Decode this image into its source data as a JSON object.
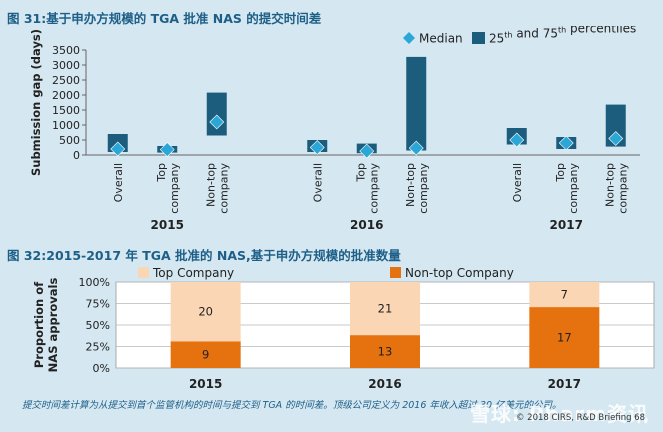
{
  "figure_titles": {
    "fig31": "图 31:基于申办方规模的 TGA 批准 NAS 的提交时间差",
    "fig32": "图 32:2015-2017 年 TGA 批准的 NAS,基于申办方规模的批准数量"
  },
  "footnote": "提交时间差计算为从提交到首个监管机构的时间与提交到 TGA 的时间差。顶级公司定义为 2016 年收入超过 30 亿美元的公司。",
  "copyright": "© 2018 CIRS, R&D Briefing 68",
  "watermark": "雪球: Pharm资讯",
  "colors": {
    "median": "#2aa6d7",
    "iqr_bar": "#1c5d7e",
    "top_company": "#fbd6b4",
    "non_top_company": "#e5720f"
  },
  "chart_data": [
    {
      "type": "bar",
      "subtype": "floating-range-with-median",
      "ylabel": "Submission gap (days)",
      "ylim": [
        0,
        3500
      ],
      "yticks": [
        0,
        500,
        1000,
        1500,
        2000,
        2500,
        3000,
        3500
      ],
      "legend": {
        "position": "top-right",
        "median_label": "Median",
        "bar_label_main": "25",
        "bar_label_sup1": "th",
        "bar_label_mid": " and 75",
        "bar_label_sup2": "th",
        "bar_label_end": " percentiles"
      },
      "groups": [
        {
          "year": "2015",
          "items": [
            {
              "category": "Overall",
              "p25": 100,
              "p75": 700,
              "median": 200
            },
            {
              "category": "Top company",
              "lines": [
                "Top",
                "company"
              ],
              "p25": 80,
              "p75": 300,
              "median": 180
            },
            {
              "category": "Non-top company",
              "lines": [
                "Non-top",
                "company"
              ],
              "p25": 650,
              "p75": 2080,
              "median": 1100
            }
          ]
        },
        {
          "year": "2016",
          "items": [
            {
              "category": "Overall",
              "p25": 100,
              "p75": 500,
              "median": 250
            },
            {
              "category": "Top company",
              "lines": [
                "Top",
                "company"
              ],
              "p25": 60,
              "p75": 380,
              "median": 130
            },
            {
              "category": "Non-top company",
              "lines": [
                "Non-top",
                "company"
              ],
              "p25": 150,
              "p75": 3270,
              "median": 230
            }
          ]
        },
        {
          "year": "2017",
          "items": [
            {
              "category": "Overall",
              "p25": 350,
              "p75": 900,
              "median": 500
            },
            {
              "category": "Top company",
              "lines": [
                "Top",
                "company"
              ],
              "p25": 200,
              "p75": 600,
              "median": 400
            },
            {
              "category": "Non-top company",
              "lines": [
                "Non-top",
                "company"
              ],
              "p25": 280,
              "p75": 1680,
              "median": 550
            }
          ]
        }
      ]
    },
    {
      "type": "bar",
      "subtype": "stacked-percent",
      "ylabel_lines": [
        "Proportion of",
        "NAS approvals"
      ],
      "ylim": [
        0,
        100
      ],
      "yticks": [
        "0%",
        "25%",
        "50%",
        "75%",
        "100%"
      ],
      "categories": [
        "2015",
        "2016",
        "2017"
      ],
      "series": [
        {
          "name": "Non-top Company",
          "values": [
            9,
            13,
            17
          ]
        },
        {
          "name": "Top Company",
          "values": [
            20,
            21,
            7
          ]
        }
      ],
      "legend_position": "top"
    }
  ]
}
